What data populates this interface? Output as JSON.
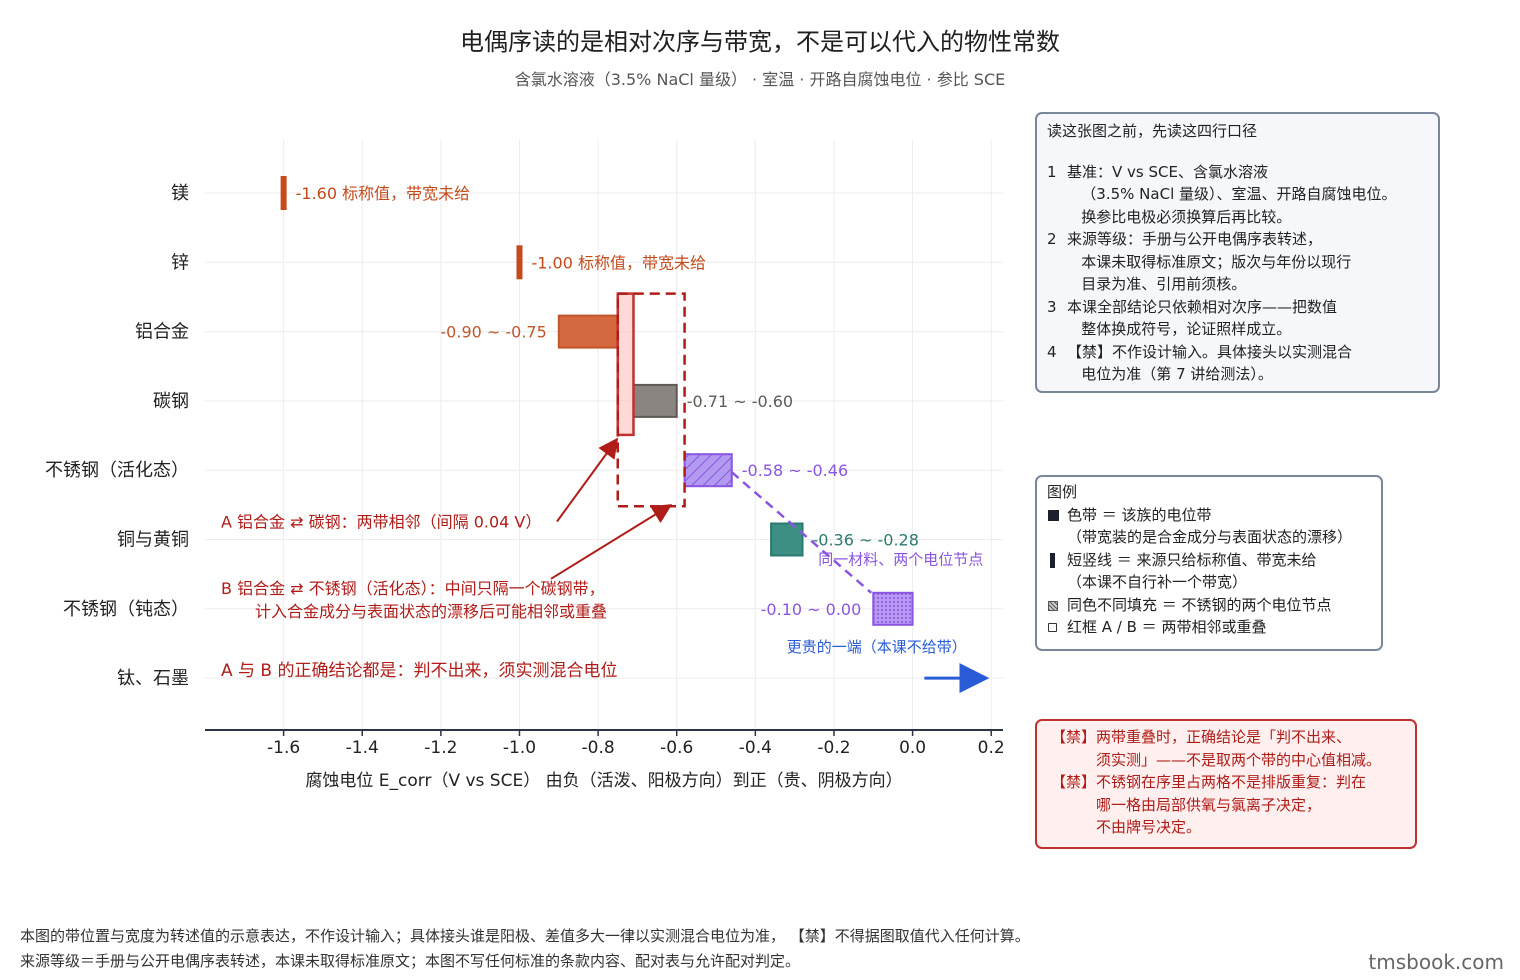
{
  "title": "电偶序读的是相对次序与带宽，不是可以代入的物性常数",
  "subtitle": "含氯水溶液（3.5% NaCl 量级） · 室温 · 开路自腐蚀电位 · 参比 SCE",
  "chart_data": {
    "type": "bar",
    "orientation": "horizontal-range",
    "categories": [
      "镁",
      "锌",
      "铝合金",
      "碳钢",
      "不锈钢（活化态）",
      "铜与黄铜",
      "不锈钢（钝态）",
      "钛、石墨"
    ],
    "xlabel": "腐蚀电位 E_corr（V vs SCE）    由负（活泼、阳极方向）到正（贵、阴极方向）",
    "xlim": [
      -1.8,
      0.23
    ],
    "xticks": [
      -1.6,
      -1.4,
      -1.2,
      -1.0,
      -0.8,
      -0.6,
      -0.4,
      -0.2,
      0.0,
      0.2
    ],
    "xtick_labels": [
      "-1.6",
      "-1.4",
      "-1.2",
      "-1.0",
      "-0.8",
      "-0.6",
      "-0.4",
      "-0.2",
      "0.0",
      "0.2"
    ],
    "grid": true,
    "bands": [
      {
        "category": "镁",
        "kind": "nominal",
        "value": -1.6,
        "label": "-1.60",
        "note": "标称值，带宽未给",
        "color": "#c44a1a"
      },
      {
        "category": "锌",
        "kind": "nominal",
        "value": -1.0,
        "label": "-1.00",
        "note": "标称值，带宽未给",
        "color": "#c44a1a"
      },
      {
        "category": "铝合金",
        "kind": "band",
        "low": -0.9,
        "high": -0.75,
        "label": "-0.90 ~ -0.75",
        "fill": "#d4693f",
        "edge": "#c0562b"
      },
      {
        "category": "碳钢",
        "kind": "band",
        "low": -0.71,
        "high": -0.6,
        "label": "-0.71 ~ -0.60",
        "fill": "#8a8580",
        "edge": "#5e5a56"
      },
      {
        "category": "不锈钢（活化态）",
        "kind": "band",
        "low": -0.58,
        "high": -0.46,
        "label": "-0.58 ~ -0.46",
        "fill": "#a98ae8",
        "edge": "#8a55e0",
        "pattern": "hatch"
      },
      {
        "category": "铜与黄铜",
        "kind": "band",
        "low": -0.36,
        "high": -0.28,
        "label": "-0.36 ~ -0.28",
        "fill": "#3d8f84",
        "edge": "#2a7a70"
      },
      {
        "category": "不锈钢（钝态）",
        "kind": "band",
        "low": -0.1,
        "high": 0.0,
        "label": "-0.10 ~ 0.00",
        "fill": "#b08cf0",
        "edge": "#8a55e0",
        "pattern": "dots"
      },
      {
        "category": "钛、石墨",
        "kind": "arrow",
        "from": 0.03,
        "to": 0.18,
        "note": "更贵的一端（本课不给带）",
        "color": "#2a5bd7"
      }
    ],
    "annotations": [
      {
        "id": "A",
        "text": "A   铝合金 ⇄ 碳钢：两带相邻（间隔 0.04 V）"
      },
      {
        "id": "B",
        "text": "B   铝合金 ⇄ 不锈钢（活化态）：中间只隔一个碳钢带，",
        "text2": "计入合金成分与表面状态的漂移后可能相邻或重叠"
      },
      {
        "id": "C",
        "text": "A 与 B 的正确结论都是：判不出来，须实测混合电位"
      },
      {
        "id": "same",
        "text": "同一材料、两个电位节点"
      }
    ]
  },
  "notes": {
    "title": "读这张图之前，先读这四行口径",
    "items": [
      {
        "num": "1",
        "text": "基准：V vs SCE、含氯水溶液\n   （3.5% NaCl 量级）、室温、开路自腐蚀电位。\n   换参比电极必须换算后再比较。"
      },
      {
        "num": "2",
        "text": "来源等级：手册与公开电偶序表转述，\n   本课未取得标准原文；版次与年份以现行\n   目录为准、引用前须核。"
      },
      {
        "num": "3",
        "text": "本课全部结论只依赖相对次序——把数值\n   整体换成符号，论证照样成立。"
      },
      {
        "num": "4",
        "text": "【禁】不作设计输入。具体接头以实测混合\n   电位为准（第 7 讲给测法）。"
      }
    ]
  },
  "legend": {
    "title": "图例",
    "items": [
      {
        "icon": "solid-square",
        "text": "色带 ＝ 该族的电位带\n（带宽装的是合金成分与表面状态的漂移）"
      },
      {
        "icon": "short-bar",
        "text": "短竖线 ＝ 来源只给标称值、带宽未给\n（本课不自行补一个带宽）"
      },
      {
        "icon": "dotted-square",
        "text": "同色不同填充 ＝ 不锈钢的两个电位节点"
      },
      {
        "icon": "hollow-square",
        "text": "红框 A / B ＝ 两带相邻或重叠"
      }
    ]
  },
  "warnings": [
    {
      "tag": "【禁】",
      "text": "两带重叠时，正确结论是「判不出来、\n须实测」——不是取两个带的中心值相减。"
    },
    {
      "tag": "【禁】",
      "text": "不锈钢在序里占两格不是排版重复：判在\n哪一格由局部供氧与氯离子决定，\n不由牌号决定。"
    }
  ],
  "footer": {
    "line1": "本图的带位置与宽度为转述值的示意表达，不作设计输入；具体接头谁是阳极、差值多大一律以实测混合电位为准， 【禁】不得据图取值代入任何计算。",
    "line2": "来源等级＝手册与公开电偶序表转述，本课未取得标准原文；本图不写任何标准的条款内容、配对表与允许配对判定。"
  },
  "brand": "tmsbook.com"
}
